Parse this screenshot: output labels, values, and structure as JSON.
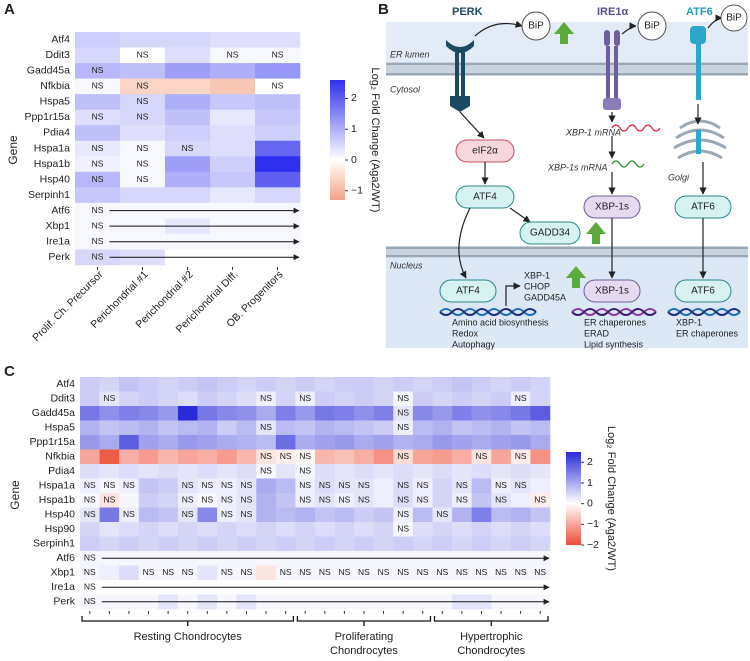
{
  "chart_data": [
    {
      "type": "heatmap",
      "label": "A",
      "ylabel": "Gene",
      "x_categories": [
        "Prolif. Ch. Precursor",
        "Perichondrial #1",
        "Perichondrial #2",
        "Perichondrial Diff.",
        "OB. Progenitors"
      ],
      "y_categories": [
        "Atf4",
        "Ddit3",
        "Gadd45a",
        "Nfkbia",
        "Hspa5",
        "Ppp1r15a",
        "Pdia4",
        "Hspa1a",
        "Hspa1b",
        "Hsp40",
        "Serpinh1",
        "Atf6",
        "Xbp1",
        "Ire1a",
        "Perk"
      ],
      "values": [
        [
          0.6,
          0.5,
          0.5,
          0.4,
          0.4
        ],
        [
          0.5,
          0.0,
          0.4,
          0.1,
          0.1
        ],
        [
          0.9,
          0.8,
          1.2,
          1.0,
          1.3
        ],
        [
          0.1,
          -0.6,
          -0.6,
          -0.8,
          0.0
        ],
        [
          0.8,
          0.5,
          1.0,
          0.7,
          0.8
        ],
        [
          0.4,
          0.5,
          0.8,
          0.3,
          0.7
        ],
        [
          0.8,
          0.4,
          0.6,
          0.4,
          0.6
        ],
        [
          0.3,
          0.1,
          0.5,
          0.4,
          1.9
        ],
        [
          0.2,
          0.1,
          1.2,
          0.6,
          2.6
        ],
        [
          0.9,
          0.1,
          1.0,
          0.7,
          2.0
        ],
        [
          0.7,
          0.5,
          0.5,
          0.3,
          0.5
        ],
        [
          0.1,
          0.1,
          0.1,
          0.1,
          0.1
        ],
        [
          0.1,
          0.1,
          0.3,
          0.1,
          0.1
        ],
        [
          0.1,
          0.1,
          0.1,
          0.1,
          0.1
        ],
        [
          0.5,
          0.4,
          0.0,
          0.0,
          0.0
        ]
      ],
      "annotations": [
        [
          null,
          null,
          null,
          null,
          null
        ],
        [
          null,
          "NS",
          null,
          "NS",
          "NS"
        ],
        [
          "NS",
          null,
          null,
          null,
          null
        ],
        [
          "NS",
          "NS",
          null,
          null,
          "NS"
        ],
        [
          null,
          "NS",
          null,
          null,
          null
        ],
        [
          "NS",
          "NS",
          null,
          null,
          null
        ],
        [
          null,
          null,
          null,
          null,
          null
        ],
        [
          "NS",
          "NS",
          "NS",
          null,
          null
        ],
        [
          "NS",
          "NS",
          null,
          null,
          null
        ],
        [
          "NS",
          "NS",
          null,
          null,
          null
        ],
        [
          null,
          null,
          null,
          null,
          null
        ],
        [
          "NS",
          null,
          null,
          null,
          null
        ],
        [
          "NS",
          null,
          null,
          null,
          null
        ],
        [
          "NS",
          null,
          null,
          null,
          null
        ],
        [
          "NS",
          null,
          null,
          null,
          null
        ]
      ],
      "arrow_rows": [
        11,
        12,
        13,
        14
      ],
      "colorbar_label": "Log₂ Fold Change (Aga2/WT)",
      "zlim": [
        -1.3,
        2.6
      ],
      "zticks": [
        {
          "value": -1,
          "label": "−1"
        },
        0,
        1,
        2
      ],
      "colors": {
        "low": "#f2a285",
        "mid": "#ffffff",
        "high": "#2f2ff0"
      }
    },
    {
      "type": "heatmap",
      "label": "C",
      "ylabel": "Gene",
      "x_categories": [
        null,
        null,
        null,
        null,
        null,
        null,
        null,
        null,
        null,
        null,
        null,
        null,
        null,
        null,
        null,
        null,
        null,
        null,
        null,
        null,
        null,
        null,
        null,
        null
      ],
      "groups": [
        {
          "label": [
            "Resting Chondrocytes"
          ],
          "from": 0,
          "to": 10
        },
        {
          "label": [
            "Proliferating",
            "Chondrocytes"
          ],
          "from": 11,
          "to": 17
        },
        {
          "label": [
            "Hypertrophic",
            "Chondrocytes"
          ],
          "from": 18,
          "to": 23
        }
      ],
      "y_categories": [
        "Atf4",
        "Ddit3",
        "Gadd45a",
        "Hspa5",
        "Ppp1r15a",
        "Nfkbia",
        "Pdia4",
        "Hspa1a",
        "Hspa1b",
        "Hsp40",
        "Hsp90",
        "Serpinh1",
        "Atf6",
        "Xbp1",
        "Ire1a",
        "Perk"
      ],
      "values": [
        [
          0.6,
          0.5,
          0.7,
          0.6,
          0.5,
          0.6,
          0.7,
          0.6,
          0.5,
          0.6,
          0.5,
          0.6,
          0.5,
          0.6,
          0.6,
          0.5,
          0.6,
          0.5,
          0.6,
          0.7,
          0.6,
          0.5,
          0.6,
          0.5
        ],
        [
          0.6,
          0.3,
          0.5,
          0.6,
          0.5,
          0.4,
          0.6,
          0.5,
          0.4,
          0.2,
          0.5,
          0.2,
          0.6,
          0.5,
          0.6,
          0.5,
          0.1,
          0.6,
          0.5,
          0.6,
          0.5,
          0.6,
          0.2,
          0.5
        ],
        [
          1.6,
          1.3,
          1.5,
          1.4,
          1.2,
          2.5,
          1.6,
          1.4,
          1.3,
          1.0,
          1.5,
          1.2,
          1.6,
          1.5,
          1.3,
          1.5,
          0.3,
          1.4,
          1.2,
          1.5,
          1.3,
          1.4,
          1.6,
          1.9
        ],
        [
          0.9,
          0.7,
          0.8,
          0.9,
          0.7,
          0.8,
          0.9,
          0.6,
          0.8,
          0.3,
          0.8,
          0.7,
          0.9,
          0.8,
          0.7,
          0.6,
          0.2,
          0.8,
          0.9,
          0.7,
          0.8,
          0.9,
          0.7,
          0.8
        ],
        [
          1.2,
          1.0,
          1.9,
          1.1,
          1.0,
          1.2,
          1.1,
          1.0,
          0.9,
          0.8,
          1.7,
          1.0,
          1.1,
          1.2,
          1.0,
          1.1,
          0.9,
          1.0,
          1.2,
          1.1,
          1.0,
          1.1,
          1.2,
          1.0
        ],
        [
          -1.0,
          -1.8,
          -0.9,
          -1.1,
          -0.8,
          -1.0,
          -0.9,
          -1.1,
          -0.8,
          -0.3,
          -0.2,
          -0.1,
          -0.8,
          -0.7,
          -0.9,
          -1.2,
          -0.4,
          -1.0,
          -1.1,
          -0.9,
          -0.3,
          -1.0,
          -0.2,
          -1.2
        ],
        [
          0.4,
          0.3,
          0.4,
          0.3,
          0.4,
          0.3,
          0.4,
          0.3,
          0.4,
          0.1,
          0.3,
          0.1,
          0.4,
          0.3,
          0.4,
          0.3,
          0.4,
          0.3,
          0.4,
          0.3,
          0.4,
          0.3,
          0.4,
          0.3
        ],
        [
          0.2,
          0.1,
          0.2,
          0.7,
          0.6,
          0.3,
          0.2,
          0.2,
          0.3,
          1.0,
          0.8,
          0.2,
          0.4,
          0.3,
          0.3,
          0.2,
          0.4,
          0.2,
          0.5,
          0.3,
          0.8,
          0.2,
          0.3,
          0.2
        ],
        [
          0.1,
          -0.3,
          0.1,
          0.6,
          0.5,
          0.2,
          0.1,
          0.2,
          0.3,
          0.9,
          0.7,
          0.2,
          0.3,
          0.2,
          0.3,
          0.2,
          0.4,
          0.2,
          0.5,
          0.2,
          0.7,
          0.3,
          0.2,
          -0.2
        ],
        [
          0.3,
          1.6,
          0.2,
          0.8,
          0.7,
          0.3,
          1.4,
          0.2,
          0.3,
          0.9,
          0.8,
          0.9,
          0.7,
          0.8,
          0.6,
          0.7,
          0.2,
          0.8,
          0.3,
          0.9,
          1.5,
          0.8,
          0.9,
          0.7
        ],
        [
          0.5,
          0.3,
          0.4,
          0.5,
          0.4,
          0.5,
          0.4,
          0.5,
          0.4,
          0.5,
          0.4,
          0.5,
          0.4,
          0.5,
          0.4,
          0.5,
          0.1,
          0.4,
          0.5,
          0.4,
          0.5,
          0.4,
          0.5,
          0.4
        ],
        [
          0.6,
          0.5,
          0.6,
          0.5,
          0.6,
          0.5,
          0.6,
          0.5,
          0.6,
          0.5,
          0.6,
          0.5,
          0.6,
          0.5,
          0.6,
          0.5,
          0.6,
          0.5,
          0.6,
          0.5,
          0.6,
          0.5,
          0.6,
          0.5
        ],
        [
          0.1,
          0.1,
          0.1,
          0.1,
          0.1,
          0.1,
          0.1,
          0.1,
          0.1,
          0.1,
          0.1,
          0.1,
          0.1,
          0.1,
          0.1,
          0.1,
          0.1,
          0.1,
          0.1,
          0.1,
          0.1,
          0.1,
          0.1,
          0.1
        ],
        [
          0.1,
          0.2,
          0.4,
          0.1,
          0.1,
          0.1,
          0.3,
          0.1,
          0.1,
          -0.3,
          0.1,
          0.1,
          0.1,
          0.1,
          0.1,
          0.1,
          0.1,
          0.1,
          0.1,
          0.1,
          0.1,
          0.1,
          0.1,
          0.1
        ],
        [
          0.0,
          0.0,
          0.0,
          0.0,
          0.0,
          0.0,
          0.0,
          0.0,
          0.0,
          0.0,
          0.0,
          0.0,
          0.0,
          0.0,
          0.0,
          0.0,
          0.0,
          0.0,
          0.0,
          0.0,
          0.0,
          0.0,
          0.0,
          0.0
        ],
        [
          0.1,
          0.1,
          0.1,
          0.1,
          0.3,
          0.1,
          0.3,
          0.1,
          0.3,
          0.1,
          0.1,
          0.1,
          0.1,
          0.1,
          0.1,
          0.1,
          0.1,
          0.1,
          0.1,
          0.3,
          0.3,
          0.1,
          0.1,
          0.1
        ]
      ],
      "annotations": [
        [
          null,
          null,
          null,
          null,
          null,
          null,
          null,
          null,
          null,
          null,
          null,
          null,
          null,
          null,
          null,
          null,
          null,
          null,
          null,
          null,
          null,
          null,
          null,
          null
        ],
        [
          null,
          "NS",
          null,
          null,
          null,
          null,
          null,
          null,
          null,
          "NS",
          null,
          "NS",
          null,
          null,
          null,
          null,
          "NS",
          null,
          null,
          null,
          null,
          null,
          "NS",
          null
        ],
        [
          null,
          null,
          null,
          null,
          null,
          null,
          null,
          null,
          null,
          null,
          null,
          null,
          null,
          null,
          null,
          null,
          "NS",
          null,
          null,
          null,
          null,
          null,
          null,
          null
        ],
        [
          null,
          null,
          null,
          null,
          null,
          null,
          null,
          null,
          null,
          "NS",
          null,
          null,
          null,
          null,
          null,
          null,
          "NS",
          null,
          null,
          null,
          null,
          null,
          null,
          null
        ],
        [
          null,
          null,
          null,
          null,
          null,
          null,
          null,
          null,
          null,
          null,
          null,
          null,
          null,
          null,
          null,
          null,
          null,
          null,
          null,
          null,
          null,
          null,
          null,
          null
        ],
        [
          null,
          null,
          null,
          null,
          null,
          null,
          null,
          null,
          null,
          "NS",
          "NS",
          "NS",
          null,
          null,
          null,
          null,
          "NS",
          null,
          null,
          null,
          "NS",
          null,
          "NS",
          null
        ],
        [
          null,
          null,
          null,
          null,
          null,
          null,
          null,
          null,
          null,
          "NS",
          null,
          "NS",
          null,
          null,
          null,
          null,
          null,
          null,
          null,
          null,
          null,
          null,
          null,
          null
        ],
        [
          "NS",
          "NS",
          "NS",
          null,
          null,
          "NS",
          "NS",
          "NS",
          "NS",
          null,
          null,
          "NS",
          "NS",
          "NS",
          "NS",
          null,
          "NS",
          "NS",
          null,
          "NS",
          null,
          "NS",
          "NS",
          null
        ],
        [
          "NS",
          "NS",
          null,
          null,
          null,
          "NS",
          "NS",
          "NS",
          "NS",
          null,
          null,
          "NS",
          "NS",
          "NS",
          "NS",
          null,
          "NS",
          "NS",
          null,
          "NS",
          null,
          "NS",
          null,
          "NS"
        ],
        [
          "NS",
          null,
          "NS",
          null,
          null,
          "NS",
          null,
          "NS",
          "NS",
          null,
          null,
          null,
          null,
          null,
          null,
          null,
          "NS",
          null,
          "NS",
          null,
          null,
          null,
          null,
          null
        ],
        [
          null,
          null,
          null,
          null,
          null,
          null,
          null,
          null,
          null,
          null,
          null,
          null,
          null,
          null,
          null,
          null,
          "NS",
          null,
          null,
          null,
          null,
          null,
          null,
          null
        ],
        [
          null,
          null,
          null,
          null,
          null,
          null,
          null,
          null,
          null,
          null,
          null,
          null,
          null,
          null,
          null,
          null,
          null,
          null,
          null,
          null,
          null,
          null,
          null,
          null
        ],
        [
          "NS",
          null,
          null,
          null,
          null,
          null,
          null,
          null,
          null,
          null,
          null,
          null,
          null,
          null,
          null,
          null,
          null,
          null,
          null,
          null,
          null,
          null,
          null,
          null
        ],
        [
          "NS",
          null,
          null,
          "NS",
          "NS",
          "NS",
          null,
          "NS",
          "NS",
          null,
          "NS",
          "NS",
          "NS",
          "NS",
          "NS",
          "NS",
          "NS",
          "NS",
          "NS",
          "NS",
          "NS",
          "NS",
          "NS",
          "NS"
        ],
        [
          "NS",
          null,
          null,
          null,
          null,
          null,
          null,
          null,
          null,
          null,
          null,
          null,
          null,
          null,
          null,
          null,
          null,
          null,
          null,
          null,
          null,
          null,
          null,
          null
        ],
        [
          "NS",
          null,
          null,
          null,
          null,
          null,
          null,
          null,
          null,
          null,
          null,
          null,
          null,
          null,
          null,
          null,
          null,
          null,
          null,
          null,
          null,
          null,
          null,
          null
        ]
      ],
      "arrow_rows": [
        12,
        14,
        15
      ],
      "colorbar_label": "Log₂ Fold Change (Aga2/WT)",
      "zlim": [
        -2,
        2.5
      ],
      "zticks": [
        {
          "value": -2,
          "label": "−2"
        },
        {
          "value": -1,
          "label": "−1"
        },
        0,
        1,
        2
      ],
      "colors": {
        "low": "#ec4a34",
        "mid": "#ffffff",
        "high": "#2a2ad8"
      }
    }
  ],
  "diagram": {
    "label": "B",
    "regions": {
      "er_lumen": "ER lumen",
      "cytosol": "Cytosol",
      "nucleus": "Nucleus",
      "golgi": "Golgi"
    },
    "sensors": [
      {
        "name": "PERK",
        "partner": "BiP"
      },
      {
        "name": "IRE1α",
        "partner": "BiP"
      },
      {
        "name": "ATF6",
        "partner": "BiP"
      }
    ],
    "transcripts": [
      "XBP-1 mRNA",
      "XBP-1s mRNA"
    ],
    "cytosol_nodes": [
      "eIF2α",
      "ATF4",
      "GADD34",
      "XBP-1s",
      "ATF6"
    ],
    "nuclear_nodes": [
      "ATF4",
      "XBP-1s",
      "ATF6"
    ],
    "targets": [
      "XBP-1",
      "CHOP",
      "GADD45A"
    ],
    "outcomes": [
      [
        "Amino acid biosynthesis",
        "Redox",
        "Autophagy"
      ],
      [
        "ER chaperones",
        "ERAD",
        "Lipid synthesis"
      ],
      [
        "XBP-1",
        "ER chaperones"
      ]
    ]
  }
}
